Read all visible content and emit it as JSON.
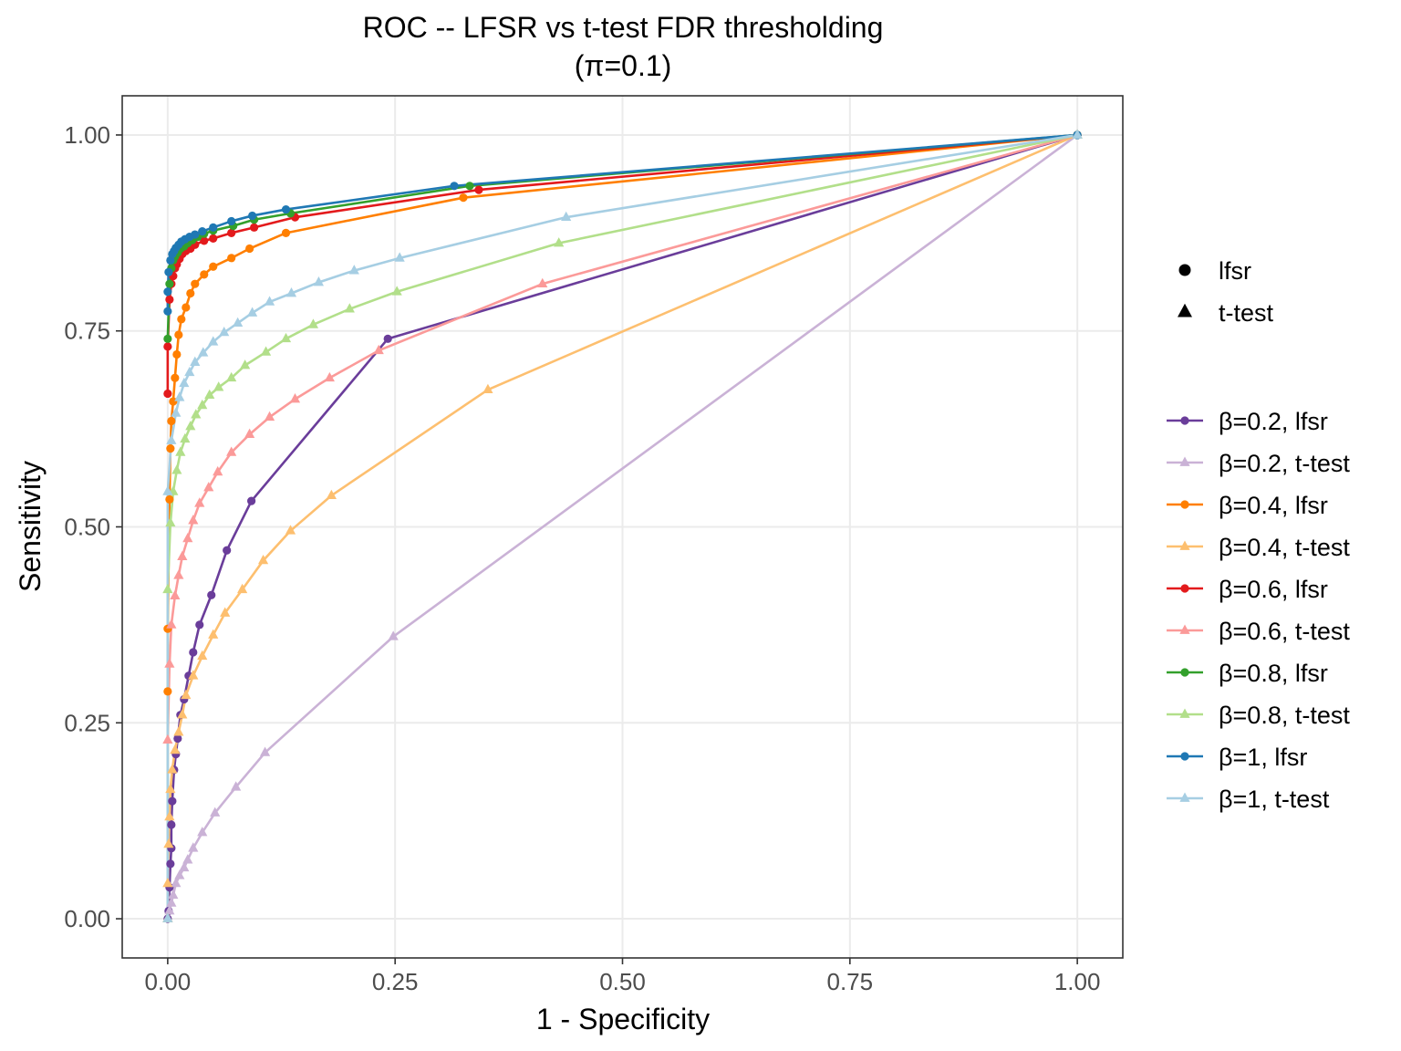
{
  "chart_data": {
    "type": "line",
    "title": "ROC -- LFSR vs t-test FDR thresholding",
    "subtitle": "(π=0.1)",
    "xlabel": "1 - Specificity",
    "ylabel": "Sensitivity",
    "xlim": [
      -0.05,
      1.05
    ],
    "ylim": [
      -0.05,
      1.05
    ],
    "xticks": [
      0,
      0.25,
      0.5,
      0.75,
      1
    ],
    "xtick_labels": [
      "0.00",
      "0.25",
      "0.50",
      "0.75",
      "1.00"
    ],
    "yticks": [
      0,
      0.25,
      0.5,
      0.75,
      1
    ],
    "ytick_labels": [
      "0.00",
      "0.25",
      "0.50",
      "0.75",
      "1.00"
    ],
    "grid": true,
    "legend_position": "right",
    "shape_legend": [
      {
        "label": "lfsr",
        "shape": "circle"
      },
      {
        "label": "t-test",
        "shape": "triangle"
      }
    ],
    "series": [
      {
        "name": "β=0.2, lfsr",
        "shape": "circle",
        "color": "#6a3d9a",
        "points": [
          [
            0,
            0
          ],
          [
            0.001,
            0.01
          ],
          [
            0.002,
            0.04
          ],
          [
            0.003,
            0.07
          ],
          [
            0.004,
            0.09
          ],
          [
            0.004,
            0.12
          ],
          [
            0.005,
            0.15
          ],
          [
            0.007,
            0.19
          ],
          [
            0.009,
            0.21
          ],
          [
            0.011,
            0.23
          ],
          [
            0.014,
            0.26
          ],
          [
            0.018,
            0.28
          ],
          [
            0.023,
            0.31
          ],
          [
            0.028,
            0.34
          ],
          [
            0.035,
            0.375
          ],
          [
            0.048,
            0.413
          ],
          [
            0.065,
            0.47
          ],
          [
            0.092,
            0.533
          ],
          [
            0.242,
            0.74
          ],
          [
            1,
            1
          ]
        ]
      },
      {
        "name": "β=0.2, t-test",
        "shape": "triangle",
        "color": "#cab2d6",
        "points": [
          [
            0,
            0
          ],
          [
            0.002,
            0.01
          ],
          [
            0.004,
            0.02
          ],
          [
            0.006,
            0.03
          ],
          [
            0.009,
            0.045
          ],
          [
            0.013,
            0.055
          ],
          [
            0.018,
            0.065
          ],
          [
            0.022,
            0.075
          ],
          [
            0.028,
            0.09
          ],
          [
            0.038,
            0.11
          ],
          [
            0.052,
            0.135
          ],
          [
            0.075,
            0.168
          ],
          [
            0.107,
            0.212
          ],
          [
            0.248,
            0.36
          ],
          [
            1,
            1
          ]
        ]
      },
      {
        "name": "β=0.4, lfsr",
        "shape": "circle",
        "color": "#ff7f00",
        "points": [
          [
            0,
            0.29
          ],
          [
            0,
            0.37
          ],
          [
            0.002,
            0.535
          ],
          [
            0.003,
            0.6
          ],
          [
            0.004,
            0.635
          ],
          [
            0.006,
            0.66
          ],
          [
            0.008,
            0.69
          ],
          [
            0.01,
            0.72
          ],
          [
            0.012,
            0.745
          ],
          [
            0.015,
            0.765
          ],
          [
            0.02,
            0.78
          ],
          [
            0.025,
            0.798
          ],
          [
            0.03,
            0.81
          ],
          [
            0.04,
            0.822
          ],
          [
            0.05,
            0.832
          ],
          [
            0.07,
            0.843
          ],
          [
            0.09,
            0.855
          ],
          [
            0.13,
            0.875
          ],
          [
            0.325,
            0.92
          ],
          [
            1,
            1
          ]
        ]
      },
      {
        "name": "β=0.4, t-test",
        "shape": "triangle",
        "color": "#fdbf6f",
        "points": [
          [
            0,
            0
          ],
          [
            0,
            0.045
          ],
          [
            0.001,
            0.095
          ],
          [
            0.002,
            0.13
          ],
          [
            0.003,
            0.165
          ],
          [
            0.005,
            0.19
          ],
          [
            0.008,
            0.215
          ],
          [
            0.012,
            0.238
          ],
          [
            0.016,
            0.26
          ],
          [
            0.02,
            0.285
          ],
          [
            0.028,
            0.31
          ],
          [
            0.038,
            0.335
          ],
          [
            0.05,
            0.362
          ],
          [
            0.063,
            0.39
          ],
          [
            0.082,
            0.42
          ],
          [
            0.105,
            0.457
          ],
          [
            0.135,
            0.495
          ],
          [
            0.18,
            0.54
          ],
          [
            0.352,
            0.675
          ],
          [
            1,
            1
          ]
        ]
      },
      {
        "name": "β=0.6, lfsr",
        "shape": "circle",
        "color": "#e31a1c",
        "points": [
          [
            0,
            0.67
          ],
          [
            0,
            0.73
          ],
          [
            0.002,
            0.79
          ],
          [
            0.004,
            0.81
          ],
          [
            0.006,
            0.82
          ],
          [
            0.008,
            0.83
          ],
          [
            0.01,
            0.835
          ],
          [
            0.013,
            0.842
          ],
          [
            0.016,
            0.848
          ],
          [
            0.02,
            0.852
          ],
          [
            0.025,
            0.855
          ],
          [
            0.03,
            0.86
          ],
          [
            0.04,
            0.865
          ],
          [
            0.05,
            0.868
          ],
          [
            0.07,
            0.875
          ],
          [
            0.095,
            0.882
          ],
          [
            0.14,
            0.895
          ],
          [
            0.342,
            0.93
          ],
          [
            1,
            1
          ]
        ]
      },
      {
        "name": "β=0.6, t-test",
        "shape": "triangle",
        "color": "#fb9a99",
        "points": [
          [
            0,
            0
          ],
          [
            0,
            0.228
          ],
          [
            0.002,
            0.325
          ],
          [
            0.004,
            0.375
          ],
          [
            0.008,
            0.412
          ],
          [
            0.012,
            0.438
          ],
          [
            0.016,
            0.462
          ],
          [
            0.022,
            0.485
          ],
          [
            0.028,
            0.508
          ],
          [
            0.035,
            0.53
          ],
          [
            0.045,
            0.55
          ],
          [
            0.055,
            0.57
          ],
          [
            0.07,
            0.595
          ],
          [
            0.09,
            0.618
          ],
          [
            0.112,
            0.64
          ],
          [
            0.14,
            0.663
          ],
          [
            0.178,
            0.69
          ],
          [
            0.232,
            0.725
          ],
          [
            0.412,
            0.81
          ],
          [
            1,
            1
          ]
        ]
      },
      {
        "name": "β=0.8, lfsr",
        "shape": "circle",
        "color": "#33a02c",
        "points": [
          [
            0,
            0.74
          ],
          [
            0.002,
            0.81
          ],
          [
            0.004,
            0.83
          ],
          [
            0.006,
            0.84
          ],
          [
            0.008,
            0.845
          ],
          [
            0.011,
            0.85
          ],
          [
            0.014,
            0.855
          ],
          [
            0.018,
            0.858
          ],
          [
            0.022,
            0.862
          ],
          [
            0.027,
            0.866
          ],
          [
            0.033,
            0.87
          ],
          [
            0.04,
            0.874
          ],
          [
            0.05,
            0.878
          ],
          [
            0.072,
            0.884
          ],
          [
            0.095,
            0.892
          ],
          [
            0.135,
            0.9
          ],
          [
            0.332,
            0.935
          ],
          [
            1,
            1
          ]
        ]
      },
      {
        "name": "β=0.8, t-test",
        "shape": "triangle",
        "color": "#b2df8a",
        "points": [
          [
            0,
            0
          ],
          [
            0,
            0.42
          ],
          [
            0.003,
            0.505
          ],
          [
            0.006,
            0.545
          ],
          [
            0.01,
            0.572
          ],
          [
            0.014,
            0.595
          ],
          [
            0.019,
            0.612
          ],
          [
            0.025,
            0.628
          ],
          [
            0.031,
            0.643
          ],
          [
            0.038,
            0.655
          ],
          [
            0.046,
            0.668
          ],
          [
            0.056,
            0.678
          ],
          [
            0.07,
            0.69
          ],
          [
            0.085,
            0.706
          ],
          [
            0.108,
            0.723
          ],
          [
            0.13,
            0.74
          ],
          [
            0.16,
            0.758
          ],
          [
            0.2,
            0.778
          ],
          [
            0.252,
            0.8
          ],
          [
            0.43,
            0.862
          ],
          [
            1,
            1
          ]
        ]
      },
      {
        "name": "β=1, lfsr",
        "shape": "circle",
        "color": "#1f78b4",
        "points": [
          [
            0,
            0.775
          ],
          [
            0,
            0.8
          ],
          [
            0.001,
            0.825
          ],
          [
            0.003,
            0.84
          ],
          [
            0.005,
            0.848
          ],
          [
            0.007,
            0.852
          ],
          [
            0.009,
            0.856
          ],
          [
            0.012,
            0.86
          ],
          [
            0.015,
            0.864
          ],
          [
            0.019,
            0.867
          ],
          [
            0.024,
            0.87
          ],
          [
            0.03,
            0.873
          ],
          [
            0.038,
            0.877
          ],
          [
            0.05,
            0.882
          ],
          [
            0.07,
            0.89
          ],
          [
            0.093,
            0.897
          ],
          [
            0.13,
            0.905
          ],
          [
            0.315,
            0.935
          ],
          [
            1,
            1
          ]
        ]
      },
      {
        "name": "β=1, t-test",
        "shape": "triangle",
        "color": "#a6cee3",
        "points": [
          [
            0,
            0
          ],
          [
            0,
            0.545
          ],
          [
            0.004,
            0.61
          ],
          [
            0.009,
            0.645
          ],
          [
            0.013,
            0.665
          ],
          [
            0.018,
            0.683
          ],
          [
            0.024,
            0.697
          ],
          [
            0.03,
            0.71
          ],
          [
            0.039,
            0.722
          ],
          [
            0.05,
            0.736
          ],
          [
            0.062,
            0.748
          ],
          [
            0.077,
            0.76
          ],
          [
            0.093,
            0.773
          ],
          [
            0.112,
            0.787
          ],
          [
            0.136,
            0.798
          ],
          [
            0.166,
            0.812
          ],
          [
            0.205,
            0.827
          ],
          [
            0.255,
            0.843
          ],
          [
            0.438,
            0.895
          ],
          [
            1,
            1
          ]
        ]
      }
    ]
  }
}
